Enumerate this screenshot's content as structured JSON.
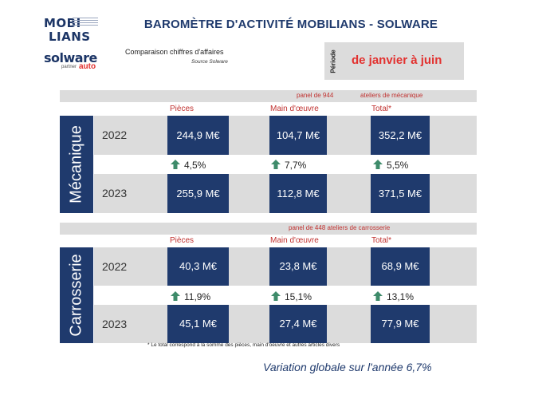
{
  "logos": {
    "mobilians_line1": "MOBI",
    "mobilians_line2": "LIANS",
    "solware": "solware",
    "solware_partner": "partner",
    "solware_auto": "auto"
  },
  "header": {
    "title": "BAROMÈTRE D'ACTIVITÉ MOBILIANS - SOLWARE",
    "subtitle": "Comparaison chiffres d'affaires",
    "source": "Source Solware",
    "periode_label": "Période",
    "periode_value": "de janvier à juin"
  },
  "mecanique": {
    "label": "Mécanique",
    "panel_left": "panel de 944",
    "panel_right": "ateliers de mécanique",
    "col_pieces": "Pièces",
    "col_main": "Main d'œuvre",
    "col_total": "Total*",
    "year1": "2022",
    "year1_pieces": "244,9 M€",
    "year1_main": "104,7 M€",
    "year1_total": "352,2 M€",
    "var_pieces": "4,5%",
    "var_main": "7,7%",
    "var_total": "5,5%",
    "year2": "2023",
    "year2_pieces": "255,9 M€",
    "year2_main": "112,8 M€",
    "year2_total": "371,5 M€"
  },
  "carrosserie": {
    "label": "Carrosserie",
    "panel": "panel de 448 ateliers de carrosserie",
    "col_pieces": "Pièces",
    "col_main": "Main d'œuvre",
    "col_total": "Total*",
    "year1": "2022",
    "year1_pieces": "40,3 M€",
    "year1_main": "23,8 M€",
    "year1_total": "68,9 M€",
    "var_pieces": "11,9%",
    "var_main": "15,1%",
    "var_total": "13,1%",
    "year2": "2023",
    "year2_pieces": "45,1 M€",
    "year2_main": "27,4 M€",
    "year2_total": "77,9 M€"
  },
  "footer": {
    "footnote": "* Le total correspond à la somme des pièces, main d'oeuvre et autres articles divers",
    "global": "Variation globale sur l'année 6,7%"
  },
  "colors": {
    "navy": "#1f3a6d",
    "red": "#e2312f",
    "grey": "#dcdcdc",
    "arrow_green": "#3e8b6a"
  },
  "icons": {
    "increase": "up-arrow-icon"
  }
}
